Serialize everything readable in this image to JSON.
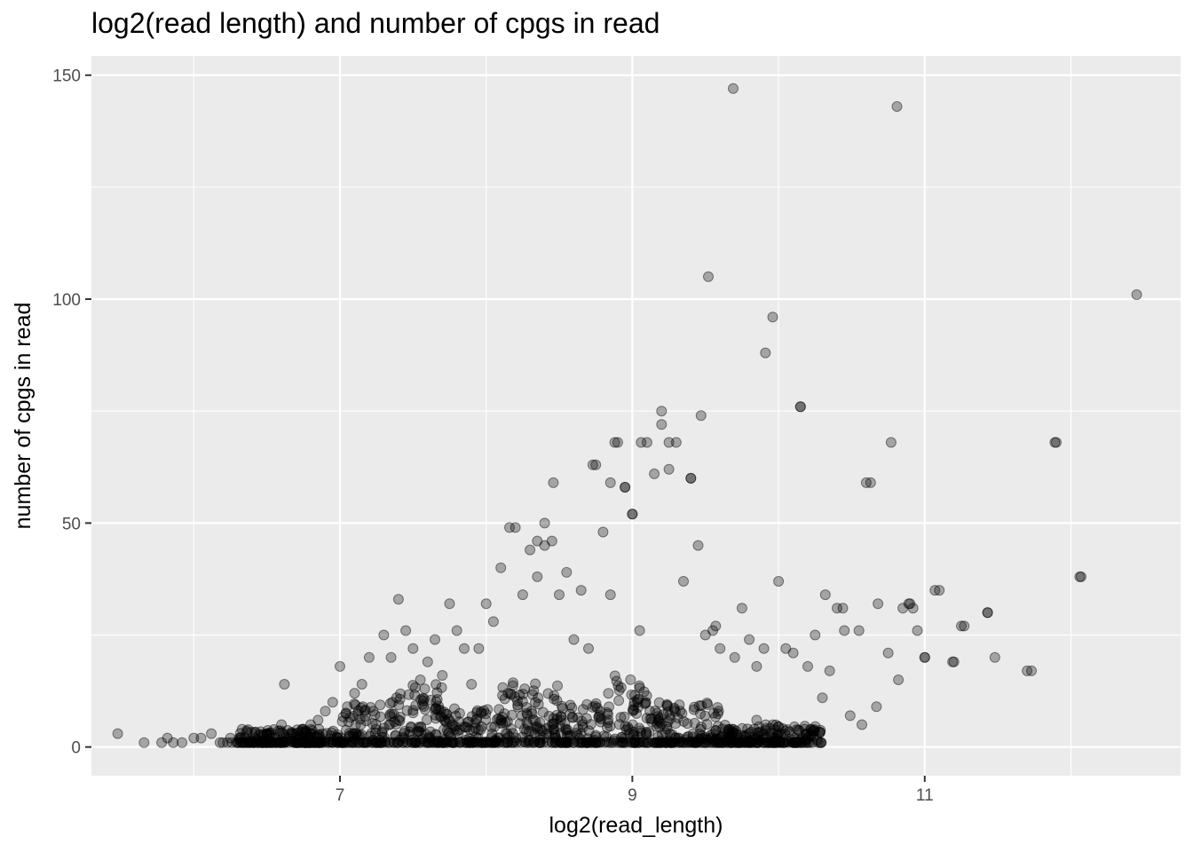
{
  "chart_data": {
    "type": "scatter",
    "title": "log2(read length) and number of cpgs in read",
    "xlabel": "log2(read_length)",
    "ylabel": "number of cpgs in read",
    "xlim": [
      5.3,
      12.75
    ],
    "ylim": [
      -6.4,
      154.3
    ],
    "x_ticks": [
      7,
      9,
      11
    ],
    "x_tick_labels": [
      "7",
      "9",
      "11"
    ],
    "x_minor_ticks": [
      6,
      8,
      10,
      12
    ],
    "y_ticks": [
      0,
      50,
      100,
      150
    ],
    "y_tick_labels": [
      "0",
      "50",
      "100",
      "150"
    ],
    "y_minor_ticks": [
      25,
      75,
      125
    ],
    "grid": true,
    "panel_color": "#ebebeb",
    "grid_color": "#ffffff",
    "point_color": "#000000",
    "point_alpha": 0.3,
    "note": "dense cloud of overlapping points at low cpg counts (roughly 0-20) for log2 read length 6.5-10.3",
    "series": [
      {
        "x": [
          5.48,
          5.66,
          5.78,
          5.82,
          5.86,
          5.92,
          6.0,
          6.05,
          6.12,
          6.18,
          6.25,
          6.3,
          6.35,
          6.42,
          6.5,
          6.55,
          6.6,
          6.62,
          6.7,
          6.75,
          6.8,
          6.85,
          6.9,
          6.95,
          7.0,
          7.05,
          7.1,
          7.15,
          7.2,
          7.3,
          7.35,
          7.4,
          7.45,
          7.5,
          7.55,
          7.6,
          7.65,
          7.7,
          7.75,
          7.8,
          7.85,
          7.9,
          7.95,
          8.0,
          8.05,
          8.1,
          8.15,
          8.2,
          8.25,
          8.3,
          8.35,
          8.4,
          8.45,
          8.5,
          8.55,
          8.6,
          8.65,
          8.7,
          8.75,
          8.8,
          8.85,
          8.9,
          8.95,
          9.0,
          9.05,
          9.1,
          9.15,
          9.2,
          9.25,
          9.3,
          9.35,
          9.4,
          9.45,
          9.5,
          9.55,
          9.6,
          9.7,
          9.75,
          9.8,
          9.85,
          9.9,
          10.0,
          10.05,
          10.1,
          10.15,
          10.2,
          10.25,
          10.3,
          10.35,
          10.4,
          10.45,
          10.55,
          10.6,
          10.68,
          10.75,
          10.85,
          10.9,
          10.95,
          11.0,
          11.1,
          11.2,
          11.27,
          11.43,
          11.48,
          11.7,
          11.9,
          12.07,
          12.45,
          9.69,
          10.81,
          9.52,
          9.96,
          9.91,
          10.15,
          9.2,
          9.47,
          8.88,
          9.06,
          9.25,
          9.4,
          8.46,
          8.73,
          8.95,
          9.0,
          8.85,
          8.16,
          8.35,
          8.4,
          9.57,
          10.63,
          10.77,
          11.89,
          12.06,
          11.07,
          10.32,
          10.44,
          10.89,
          10.92,
          11.43,
          11.25,
          11.0,
          11.19,
          11.73,
          10.49,
          10.57,
          10.67,
          10.82,
          10.2,
          10.0,
          9.85
        ],
        "y": [
          3,
          1,
          1,
          2,
          1,
          1,
          2,
          2,
          3,
          1,
          2,
          1,
          2,
          2,
          3,
          2,
          5,
          14,
          3,
          4,
          5,
          6,
          8,
          10,
          18,
          9,
          12,
          14,
          20,
          25,
          20,
          33,
          26,
          22,
          15,
          19,
          24,
          16,
          32,
          26,
          22,
          14,
          22,
          32,
          28,
          40,
          12,
          49,
          34,
          44,
          38,
          50,
          46,
          34,
          39,
          24,
          35,
          22,
          63,
          48,
          34,
          68,
          58,
          52,
          26,
          68,
          61,
          75,
          62,
          68,
          37,
          60,
          45,
          25,
          26,
          22,
          20,
          31,
          24,
          18,
          22,
          37,
          22,
          21,
          76,
          18,
          25,
          11,
          17,
          31,
          26,
          26,
          59,
          32,
          21,
          31,
          32,
          26,
          20,
          35,
          19,
          27,
          30,
          20,
          17,
          68,
          38,
          101,
          147,
          143,
          105,
          96,
          88,
          76,
          72,
          74,
          68,
          68,
          68,
          60,
          59,
          63,
          58,
          52,
          59,
          49,
          46,
          45,
          27,
          59,
          68,
          68,
          38,
          35,
          34,
          31,
          32,
          31,
          30,
          27,
          20,
          19,
          17,
          7,
          5,
          9,
          15,
          1,
          3,
          6
        ]
      }
    ],
    "density_bands": [
      {
        "x0": 6.3,
        "x1": 7.0,
        "ymax": 4
      },
      {
        "x0": 7.0,
        "x1": 7.3,
        "ymax": 10
      },
      {
        "x0": 7.3,
        "x1": 7.7,
        "ymax": 14
      },
      {
        "x0": 7.7,
        "x1": 8.1,
        "ymax": 9
      },
      {
        "x0": 8.1,
        "x1": 8.5,
        "ymax": 15
      },
      {
        "x0": 8.5,
        "x1": 8.8,
        "ymax": 10
      },
      {
        "x0": 8.8,
        "x1": 9.1,
        "ymax": 16
      },
      {
        "x0": 9.1,
        "x1": 9.6,
        "ymax": 10
      },
      {
        "x0": 9.6,
        "x1": 10.3,
        "ymax": 5
      }
    ]
  }
}
